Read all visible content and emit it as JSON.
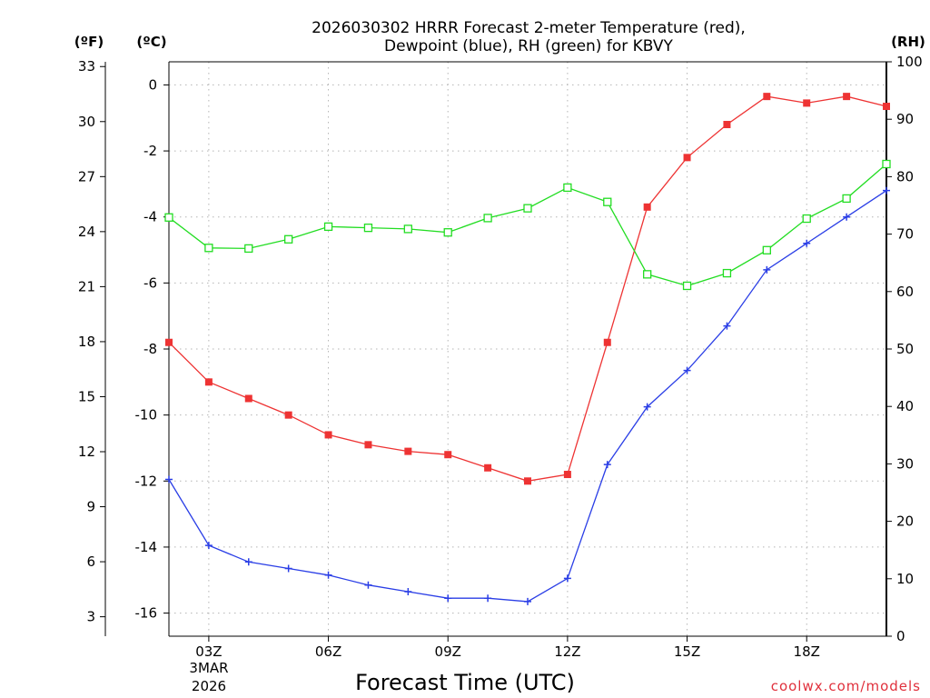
{
  "chart_data": {
    "type": "line",
    "title_line1": "2026030302 HRRR Forecast 2-meter Temperature (red),",
    "title_line2": "Dewpoint (blue), RH (green) for KBVY",
    "xlabel": "Forecast Time (UTC)",
    "credit": "coolwx.com/models",
    "units": {
      "fahrenheit": "(ºF)",
      "celsius": "(ºC)",
      "rh": "(RH)"
    },
    "date_label": [
      "3MAR",
      "2026"
    ],
    "x_hours": [
      2,
      3,
      4,
      5,
      6,
      7,
      8,
      9,
      10,
      11,
      12,
      13,
      14,
      15,
      16,
      17,
      18,
      19,
      20
    ],
    "xlim": [
      2,
      20
    ],
    "x_ticks": [
      {
        "hour": 3,
        "label": "03Z"
      },
      {
        "hour": 6,
        "label": "06Z"
      },
      {
        "hour": 9,
        "label": "09Z"
      },
      {
        "hour": 12,
        "label": "12Z"
      },
      {
        "hour": 15,
        "label": "15Z"
      },
      {
        "hour": 18,
        "label": "18Z"
      }
    ],
    "celsius_axis": {
      "ylim": [
        -16.7,
        0.7
      ],
      "ticks": [
        "0",
        "-2",
        "-4",
        "-6",
        "-8",
        "-10",
        "-12",
        "-14",
        "-16"
      ],
      "tick_values": [
        0,
        -2,
        -4,
        -6,
        -8,
        -10,
        -12,
        -14,
        -16
      ]
    },
    "fahrenheit_axis": {
      "ticks": [
        "33",
        "30",
        "27",
        "24",
        "21",
        "18",
        "15",
        "12",
        "9",
        "6",
        "3"
      ],
      "tick_values": [
        33,
        30,
        27,
        24,
        21,
        18,
        15,
        12,
        9,
        6,
        3
      ]
    },
    "rh_axis": {
      "ylim": [
        0,
        100
      ],
      "ticks": [
        "100",
        "90",
        "80",
        "70",
        "60",
        "50",
        "40",
        "30",
        "20",
        "10",
        "0"
      ],
      "tick_values": [
        100,
        90,
        80,
        70,
        60,
        50,
        40,
        30,
        20,
        10,
        0
      ]
    },
    "series": [
      {
        "name": "Temperature",
        "axis": "celsius",
        "color": "#ee3333",
        "marker": "filled-square",
        "values": [
          -7.8,
          -9.0,
          -9.5,
          -10.0,
          -10.6,
          -10.9,
          -11.1,
          -11.2,
          -11.6,
          -12.0,
          -11.8,
          -7.8,
          -3.7,
          -2.2,
          -1.2,
          -0.35,
          -0.55,
          -0.35,
          -0.65
        ]
      },
      {
        "name": "Dewpoint",
        "axis": "celsius",
        "color": "#2a3ee6",
        "marker": "plus",
        "values": [
          -11.95,
          -13.95,
          -14.45,
          -14.65,
          -14.85,
          -15.15,
          -15.35,
          -15.55,
          -15.55,
          -15.65,
          -14.95,
          -11.5,
          -9.75,
          -8.65,
          -7.3,
          -5.6,
          -4.8,
          -4.0,
          -3.2
        ]
      },
      {
        "name": "RH",
        "axis": "rh",
        "color": "#22dd22",
        "marker": "open-square",
        "values": [
          72.9,
          67.6,
          67.5,
          69.1,
          71.3,
          71.1,
          70.9,
          70.3,
          72.8,
          74.5,
          78.1,
          75.6,
          63.0,
          61.0,
          63.2,
          67.2,
          72.7,
          76.2,
          82.2
        ]
      }
    ]
  }
}
